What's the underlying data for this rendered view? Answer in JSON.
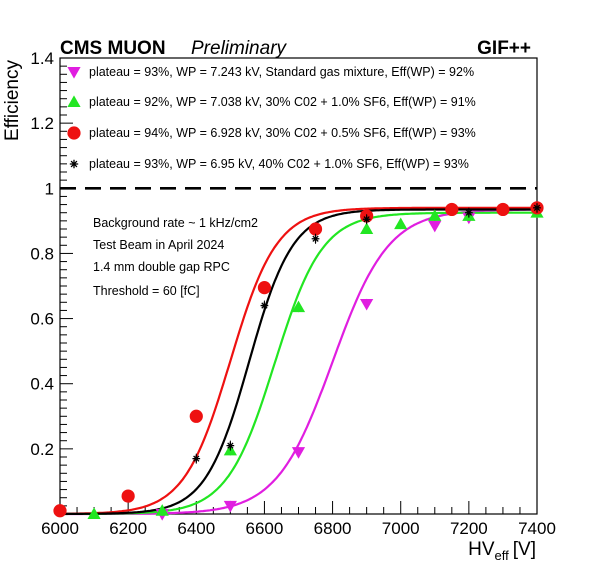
{
  "header": {
    "experiment": "CMS MUON",
    "status": "Preliminary",
    "facility": "GIF++"
  },
  "chart_data": {
    "type": "scatter",
    "xlabel": "HV",
    "xlabel_sub": "eff",
    "xlabel_unit": "[V]",
    "ylabel": "Efficiency",
    "xlim": [
      6000,
      7400
    ],
    "ylim": [
      0,
      1.4
    ],
    "x_ticks": [
      "6000",
      "6200",
      "6400",
      "6600",
      "6800",
      "7000",
      "7200",
      "7400"
    ],
    "y_ticks": [
      "0.2",
      "0.4",
      "0.6",
      "0.8",
      "1",
      "1.2",
      "1.4"
    ],
    "x_tick_values": [
      6000,
      6200,
      6400,
      6600,
      6800,
      7000,
      7200,
      7400
    ],
    "y_tick_values": [
      0.2,
      0.4,
      0.6,
      0.8,
      1.0,
      1.2,
      1.4
    ],
    "reference_line": 1.0,
    "grid": false,
    "legend_position": "top-left",
    "annotations": [
      "Background rate ~ 1  kHz/cm2",
      "Test Beam in April 2024",
      "1.4 mm double gap RPC",
      "Threshold = 60 [fC]"
    ],
    "series": [
      {
        "name": "plateau = 93%, WP = 7.243 kV, Standard gas mixture, Eff(WP) = 92%",
        "color": "#e01ee0",
        "marker": "triangle-down",
        "fit": {
          "plateau": 0.935,
          "hv50": 6800,
          "width": 82
        },
        "x": [
          6300,
          6500,
          6700,
          6900,
          7100,
          7200
        ],
        "y": [
          0.0,
          0.025,
          0.19,
          0.645,
          0.885,
          0.91
        ]
      },
      {
        "name": "plateau = 92%, WP = 7.038 kV, 30% C02 + 1.0% SF6, Eff(WP) = 91%",
        "color": "#22e622",
        "marker": "triangle-up",
        "fit": {
          "plateau": 0.925,
          "hv50": 6630,
          "width": 70
        },
        "x": [
          6100,
          6300,
          6500,
          6700,
          6900,
          7000,
          7100,
          7200,
          7400
        ],
        "y": [
          0.0,
          0.01,
          0.195,
          0.635,
          0.875,
          0.89,
          0.915,
          0.915,
          0.925
        ]
      },
      {
        "name": "plateau = 94%, WP = 6.928 kV, 30% C02 + 0.5% SF6, Eff(WP) = 93%",
        "color": "#ee1111",
        "marker": "circle",
        "fit": {
          "plateau": 0.94,
          "hv50": 6500,
          "width": 68
        },
        "x": [
          6000,
          6200,
          6400,
          6600,
          6750,
          6900,
          7150,
          7300,
          7400
        ],
        "y": [
          0.01,
          0.055,
          0.3,
          0.695,
          0.875,
          0.915,
          0.935,
          0.935,
          0.94
        ]
      },
      {
        "name": "plateau = 93%, WP = 6.95 kV, 40% C02 + 1.0% SF6, Eff(WP) = 93%",
        "color": "#000000",
        "marker": "star",
        "fit": {
          "plateau": 0.935,
          "hv50": 6555,
          "width": 64
        },
        "x": [
          6400,
          6500,
          6600,
          6750,
          6900,
          7200,
          7400
        ],
        "y": [
          0.17,
          0.21,
          0.64,
          0.845,
          0.905,
          0.925,
          0.94
        ]
      }
    ]
  }
}
